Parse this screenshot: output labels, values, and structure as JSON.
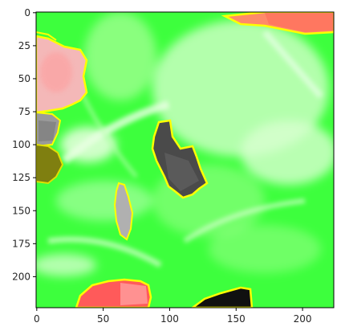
{
  "figure": {
    "image_description": "image",
    "x_axis": {
      "range": [
        0,
        224
      ],
      "ticks": [
        0,
        50,
        100,
        150,
        200
      ],
      "tick_labels": [
        "0",
        "50",
        "100",
        "150",
        "200"
      ]
    },
    "y_axis": {
      "range": [
        0,
        224
      ],
      "inverted": true,
      "ticks": [
        0,
        25,
        50,
        75,
        100,
        125,
        150,
        175,
        200
      ],
      "tick_labels": [
        "0",
        "25",
        "50",
        "75",
        "100",
        "125",
        "150",
        "175",
        "200"
      ]
    },
    "colors": {
      "overlay_green": "#33ff33",
      "highlight_green": "#c8ffc0",
      "mask_border": "#ffff00",
      "red_patch": "#ff8080",
      "pink_patch": "#f4b8b8",
      "dark_patch": "#4a4a4a",
      "gray_patch": "#a8a8a8",
      "olive_patch": "#7f7f10",
      "black_patch": "#101010"
    }
  }
}
